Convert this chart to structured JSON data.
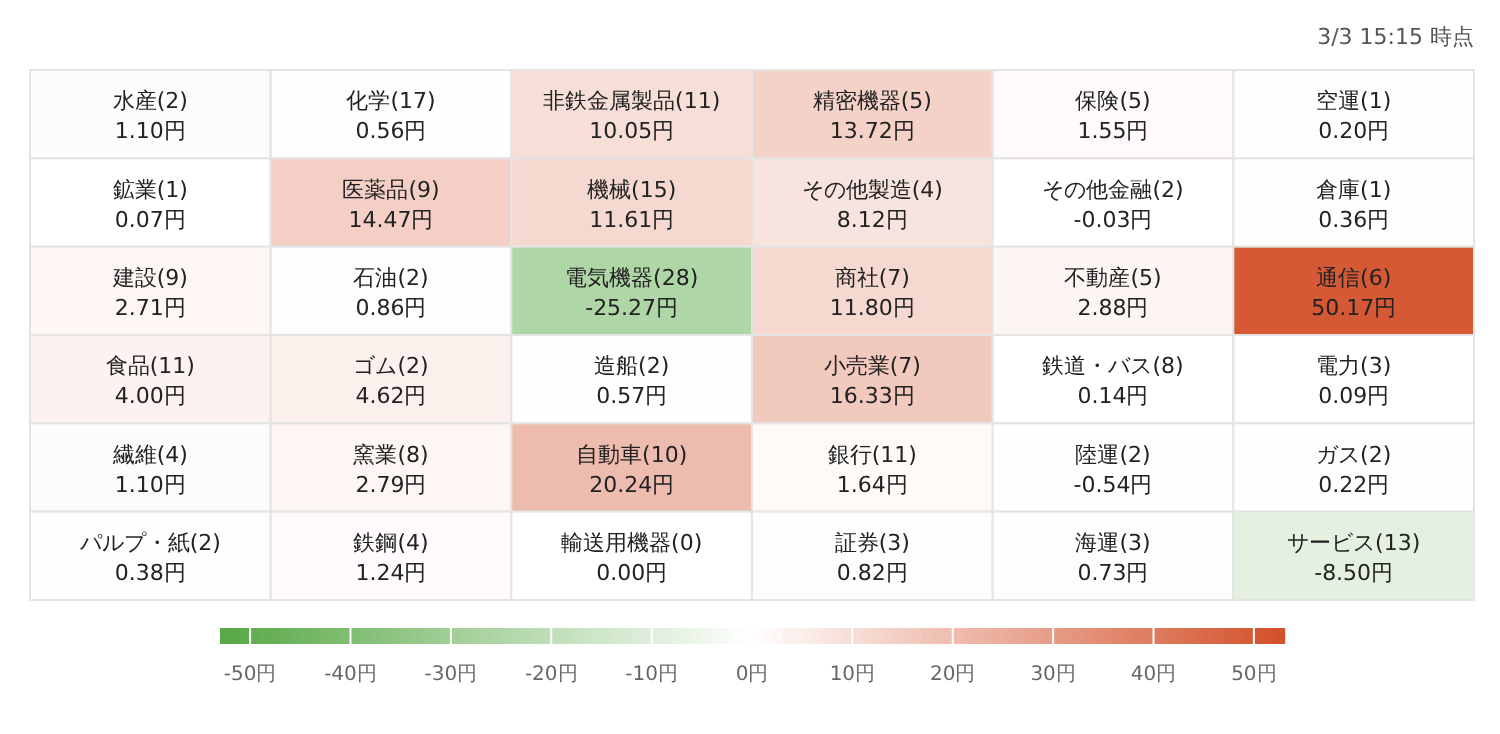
{
  "chart_data": {
    "type": "heatmap",
    "subtitle": "3/3 15:15 時点",
    "categories": [
      null,
      null,
      null,
      null,
      null,
      null
    ],
    "y_categories": [
      null,
      null,
      null,
      null,
      null,
      null
    ],
    "cells": [
      [
        1.1,
        0.56,
        10.05,
        13.72,
        1.55,
        0.2
      ],
      [
        0.07,
        14.47,
        11.61,
        8.12,
        -0.03,
        0.36
      ],
      [
        2.71,
        0.86,
        -25.27,
        11.8,
        2.88,
        50.17
      ],
      [
        4.0,
        4.62,
        0.57,
        16.33,
        0.14,
        0.09
      ],
      [
        1.1,
        2.79,
        20.24,
        1.64,
        -0.54,
        0.22
      ],
      [
        0.38,
        1.24,
        0.0,
        0.82,
        0.73,
        -8.5
      ]
    ],
    "cell_labels": [
      [
        "水産(2)\n1.10円",
        "化学(17)\n0.56円",
        "非鉄金属製品(11)\n10.05円",
        "精密機器(5)\n13.72円",
        "保険(5)\n1.55円",
        "空運(1)\n0.20円"
      ],
      [
        "鉱業(1)\n0.07円",
        "医薬品(9)\n14.47円",
        "機械(15)\n11.61円",
        "その他製造(4)\n8.12円",
        "その他金融(2)\n-0.03円",
        "倉庫(1)\n0.36円"
      ],
      [
        "建設(9)\n2.71円",
        "石油(2)\n0.86円",
        "電気機器(28)\n-25.27円",
        "商社(7)\n11.80円",
        "不動産(5)\n2.88円",
        "通信(6)\n50.17円"
      ],
      [
        "食品(11)\n4.00円",
        "ゴム(2)\n4.62円",
        "造船(2)\n0.57円",
        "小売業(7)\n16.33円",
        "鉄道・バス(8)\n0.14円",
        "電力(3)\n0.09円"
      ],
      [
        "繊維(4)\n1.10円",
        "窯業(8)\n2.79円",
        "自動車(10)\n20.24円",
        "銀行(11)\n1.64円",
        "陸運(2)\n-0.54円",
        "ガス(2)\n0.22円"
      ],
      [
        "パルプ・紙(2)\n0.38円",
        "鉄鋼(4)\n1.24円",
        "輸送用機器(0)\n0.00円",
        "証券(3)\n0.82円",
        "海運(3)\n0.73円",
        "サービス(13)\n-8.50円"
      ]
    ],
    "colors": [
      "#57a845",
      "#ffffff",
      "#d3502a"
    ],
    "clim": [
      -53,
      53
    ],
    "cticks": [
      {
        "value": -50,
        "label": "-50円"
      },
      {
        "value": -40,
        "label": "-40円"
      },
      {
        "value": -30,
        "label": "-30円"
      },
      {
        "value": -20,
        "label": "-20円"
      },
      {
        "value": -10,
        "label": "-10円"
      },
      {
        "value": 0,
        "label": "0円"
      },
      {
        "value": 10,
        "label": "10円"
      },
      {
        "value": 20,
        "label": "20円"
      },
      {
        "value": 30,
        "label": "30円"
      },
      {
        "value": 40,
        "label": "40円"
      },
      {
        "value": 50,
        "label": "50円"
      }
    ]
  }
}
